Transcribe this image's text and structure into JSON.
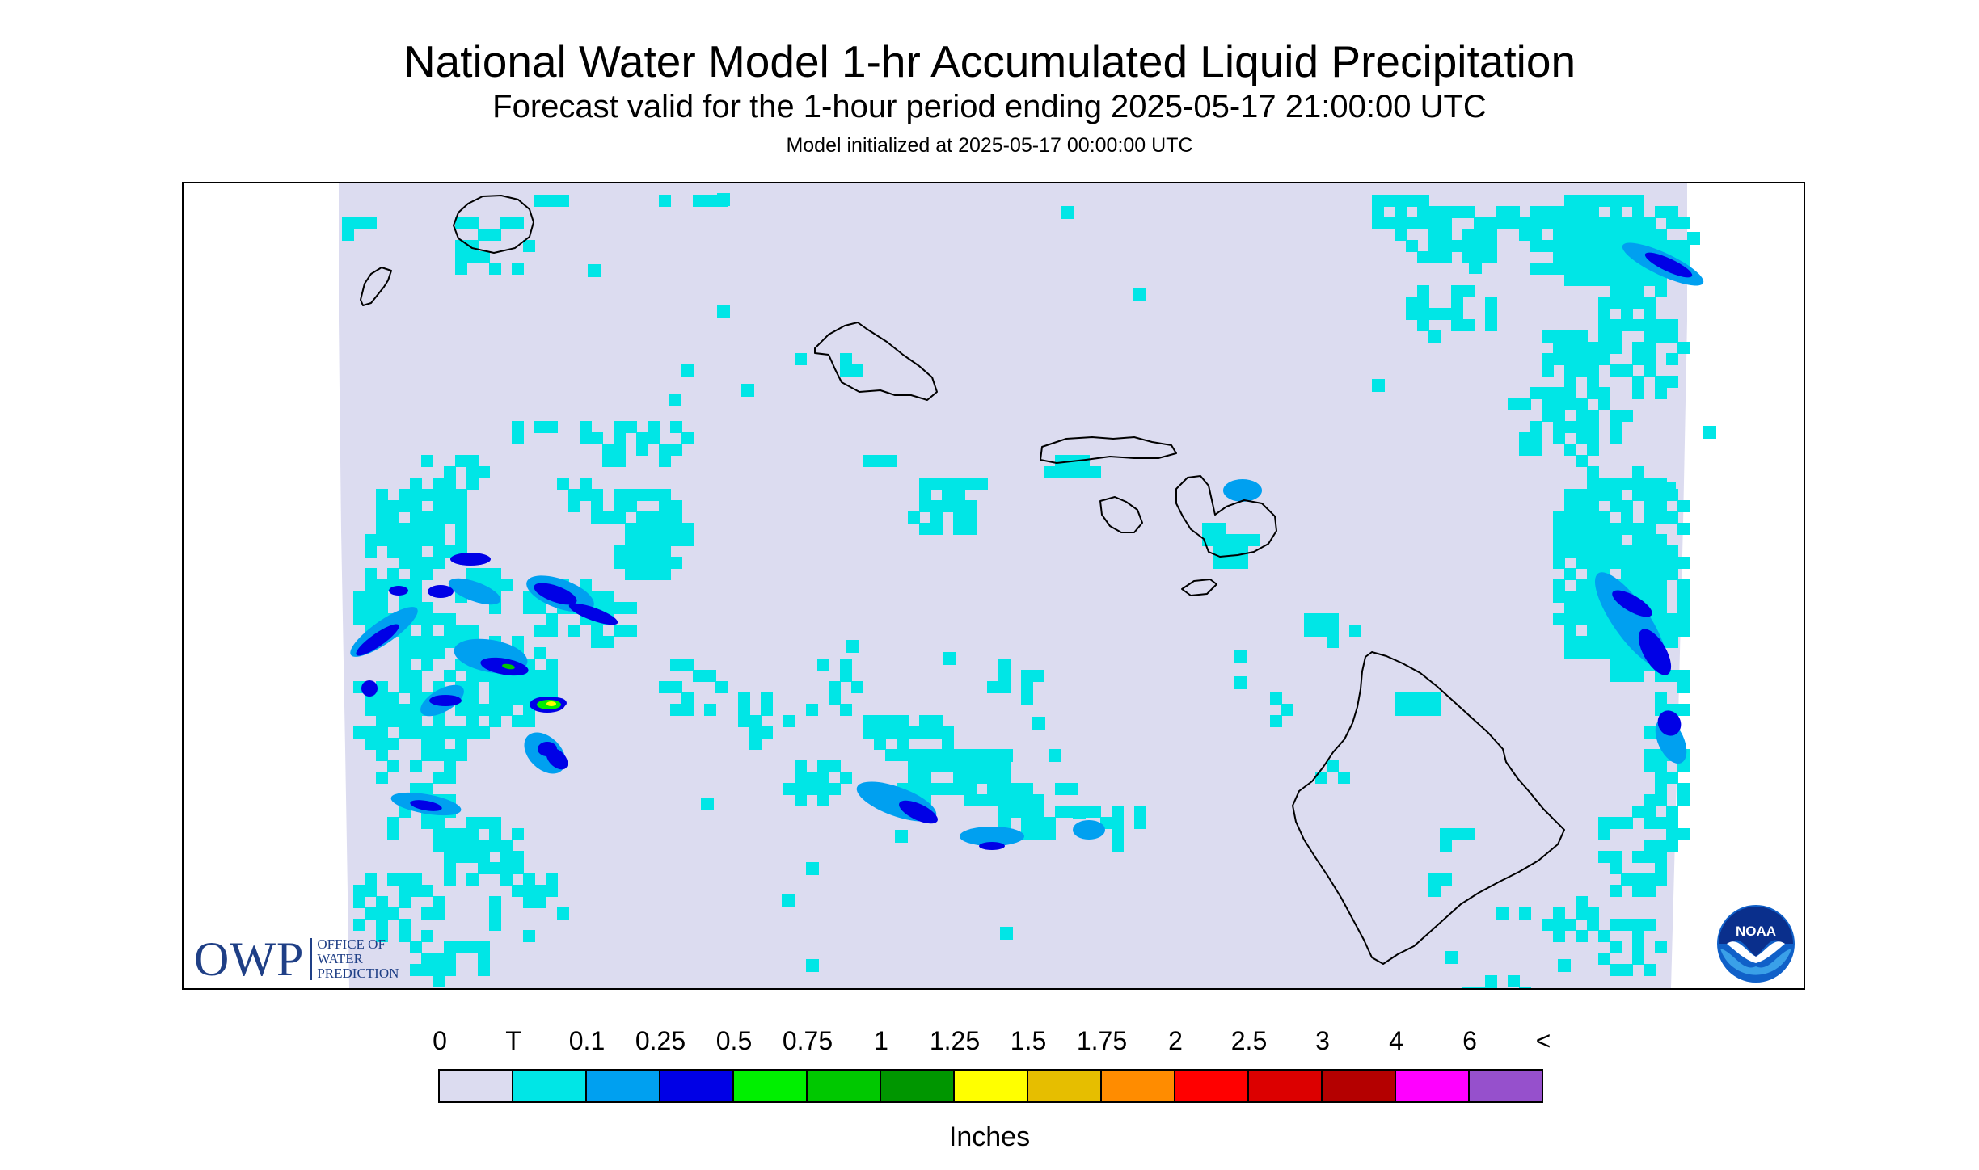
{
  "header": {
    "title": "National Water Model 1-hr Accumulated Liquid Precipitation",
    "subtitle": "Forecast valid for the 1-hour period ending 2025-05-17 21:00:00 UTC",
    "init": "Model initialized at 2025-05-17 00:00:00 UTC"
  },
  "logos": {
    "owp_word": "OWP",
    "owp_lines": [
      "OFFICE OF",
      "WATER",
      "PREDICTION"
    ],
    "noaa_text": "NOAA"
  },
  "legend": {
    "labels": [
      "0",
      "T",
      "0.1",
      "0.25",
      "0.5",
      "0.75",
      "1",
      "1.25",
      "1.5",
      "1.75",
      "2",
      "2.5",
      "3",
      "4",
      "6",
      "<"
    ],
    "colors": [
      "#dcdcf0",
      "#00e6e6",
      "#00a0f0",
      "#0000e6",
      "#00f000",
      "#00c800",
      "#009600",
      "#ffff00",
      "#e6be00",
      "#ff8c00",
      "#ff0000",
      "#dc0000",
      "#b40000",
      "#ff00ff",
      "#9650cc"
    ],
    "units": "Inches"
  },
  "map": {
    "background_color": "#dcdcf0",
    "coastline_color": "#000000",
    "islands": [
      "Niihau",
      "Kauai",
      "Oahu",
      "Molokai",
      "Lanai",
      "Maui",
      "Kahoolawe",
      "Hawaii"
    ]
  }
}
